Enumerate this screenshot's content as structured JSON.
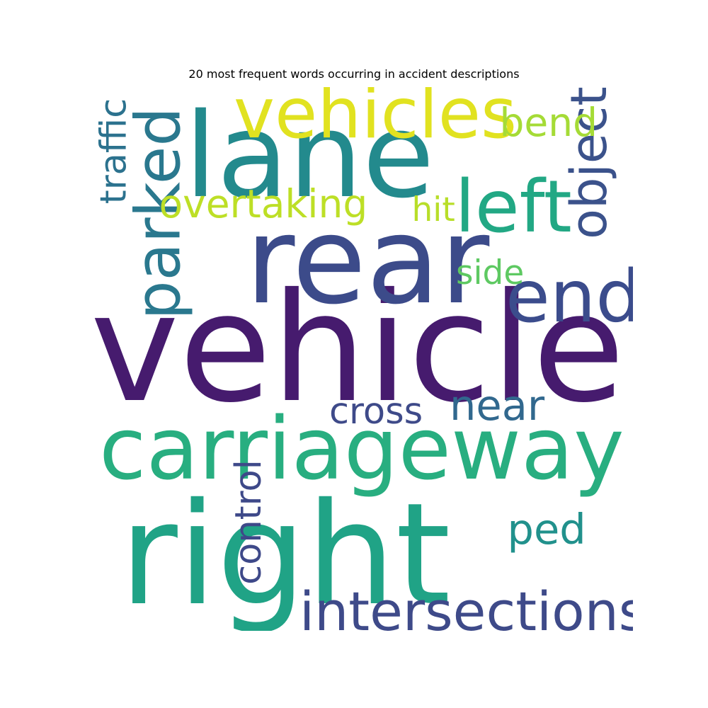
{
  "chart_data": {
    "type": "wordcloud",
    "title": "20 most frequent words occurring in accident descriptions",
    "words": [
      {
        "text": "vehicle",
        "weight": 1.0,
        "color": "#461b6e",
        "orientation": "horizontal"
      },
      {
        "text": "right",
        "weight": 0.94,
        "color": "#20a386",
        "orientation": "horizontal"
      },
      {
        "text": "rear",
        "weight": 0.8,
        "color": "#3c4b8a",
        "orientation": "horizontal"
      },
      {
        "text": "lane",
        "weight": 0.78,
        "color": "#238a8d",
        "orientation": "horizontal"
      },
      {
        "text": "carriageway",
        "weight": 0.57,
        "color": "#28ae80",
        "orientation": "horizontal"
      },
      {
        "text": "end",
        "weight": 0.48,
        "color": "#3b4c8c",
        "orientation": "horizontal"
      },
      {
        "text": "left",
        "weight": 0.48,
        "color": "#22a884",
        "orientation": "horizontal"
      },
      {
        "text": "vehicles",
        "weight": 0.46,
        "color": "#e1e220",
        "orientation": "horizontal"
      },
      {
        "text": "parked",
        "weight": 0.41,
        "color": "#2a788e",
        "orientation": "vertical"
      },
      {
        "text": "intersections",
        "weight": 0.36,
        "color": "#3e4a89",
        "orientation": "horizontal"
      },
      {
        "text": "object",
        "weight": 0.33,
        "color": "#3b528b",
        "orientation": "vertical"
      },
      {
        "text": "near",
        "weight": 0.28,
        "color": "#31688e",
        "orientation": "horizontal"
      },
      {
        "text": "ped",
        "weight": 0.28,
        "color": "#21918c",
        "orientation": "horizontal"
      },
      {
        "text": "overtaking",
        "weight": 0.26,
        "color": "#bddf26",
        "orientation": "horizontal"
      },
      {
        "text": "bend",
        "weight": 0.26,
        "color": "#a5db36",
        "orientation": "horizontal"
      },
      {
        "text": "control",
        "weight": 0.24,
        "color": "#3e4989",
        "orientation": "vertical"
      },
      {
        "text": "cross",
        "weight": 0.24,
        "color": "#3e4a89",
        "orientation": "horizontal"
      },
      {
        "text": "traffic",
        "weight": 0.24,
        "color": "#2c728e",
        "orientation": "vertical"
      },
      {
        "text": "hit",
        "weight": 0.22,
        "color": "#b8de29",
        "orientation": "horizontal"
      },
      {
        "text": "side",
        "weight": 0.22,
        "color": "#5ec962",
        "orientation": "horizontal"
      }
    ]
  }
}
